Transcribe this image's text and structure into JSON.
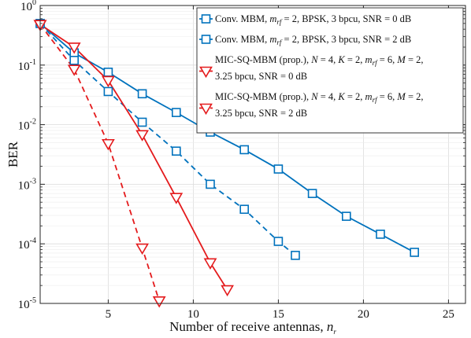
{
  "chart_data": {
    "type": "line",
    "xlabel": "Number of receive antennas, ",
    "xlabel_var": "n",
    "xlabel_sub": "r",
    "ylabel": "BER",
    "xlim": [
      1,
      26
    ],
    "ylim_log10": [
      -5,
      0
    ],
    "y_scale": "log",
    "grid": true,
    "legend_placement": "top-right",
    "x_ticks": [
      5,
      10,
      15,
      20,
      25
    ],
    "y_ticks": [
      {
        "base": "10",
        "exp": "0",
        "value": 1
      },
      {
        "base": "10",
        "exp": "-1",
        "value": 0.1
      },
      {
        "base": "10",
        "exp": "-2",
        "value": 0.01
      },
      {
        "base": "10",
        "exp": "-3",
        "value": 0.001
      },
      {
        "base": "10",
        "exp": "-4",
        "value": 0.0001
      },
      {
        "base": "10",
        "exp": "-5",
        "value": 1e-05
      }
    ],
    "series": [
      {
        "name": "Conv. MBM, m_rf = 2, BPSK, 3 bpcu, SNR = 0 dB",
        "legend_parts": [
          "Conv. MBM, ",
          "m",
          "rf",
          " = 2, BPSK, 3 bpcu, SNR = 0 dB"
        ],
        "color": "#0072BD",
        "dash": "solid",
        "marker": "square",
        "x": [
          1,
          3,
          5,
          7,
          9,
          11,
          13,
          15,
          17,
          19,
          21,
          23
        ],
        "y": [
          0.5,
          0.16,
          0.076,
          0.033,
          0.016,
          0.0075,
          0.0038,
          0.0018,
          0.0007,
          0.00029,
          0.000145,
          7.2e-05
        ]
      },
      {
        "name": "Conv. MBM, m_rf = 2, BPSK, 3 bpcu, SNR = 2 dB",
        "legend_parts": [
          "Conv. MBM, ",
          "m",
          "rf",
          " = 2, BPSK, 3 bpcu, SNR = 2 dB"
        ],
        "color": "#0072BD",
        "dash": "dashed",
        "marker": "square",
        "x": [
          1,
          3,
          5,
          7,
          9,
          11,
          13,
          15,
          16
        ],
        "y": [
          0.5,
          0.12,
          0.036,
          0.011,
          0.0036,
          0.001,
          0.00038,
          0.00011,
          6.4e-05
        ]
      },
      {
        "name": "MIC-SQ-MBM (prop.), N = 4, K = 2, m_rf = 6, M = 2, 3.25 bpcu, SNR = 0 dB",
        "legend_line1": [
          "MIC-SQ-MBM (prop.), ",
          "N",
          " = 4, ",
          "K",
          " = 2, ",
          "m",
          "rf",
          " = 6, ",
          "M",
          " = 2,"
        ],
        "legend_line2": "3.25 bpcu, SNR = 0 dB",
        "color": "#E41A1C",
        "dash": "solid",
        "marker": "triangle-down",
        "x": [
          1,
          3,
          5,
          7,
          9,
          11,
          12
        ],
        "y": [
          0.48,
          0.2,
          0.055,
          0.0068,
          0.0006,
          4.8e-05,
          1.7e-05
        ]
      },
      {
        "name": "MIC-SQ-MBM (prop.), N = 4, K = 2, m_rf = 6, M = 2, 3.25 bpcu, SNR = 2 dB",
        "legend_line1": [
          "MIC-SQ-MBM (prop.), ",
          "N",
          " = 4, ",
          "K",
          " = 2, ",
          "m",
          "rf",
          " = 6, ",
          "M",
          " = 2,"
        ],
        "legend_line2": "3.25 bpcu, SNR = 2 dB",
        "color": "#E41A1C",
        "dash": "dashed",
        "marker": "triangle-down",
        "x": [
          1,
          3,
          5,
          7,
          8
        ],
        "y": [
          0.48,
          0.085,
          0.0048,
          8.5e-05,
          1.1e-05
        ]
      }
    ]
  }
}
